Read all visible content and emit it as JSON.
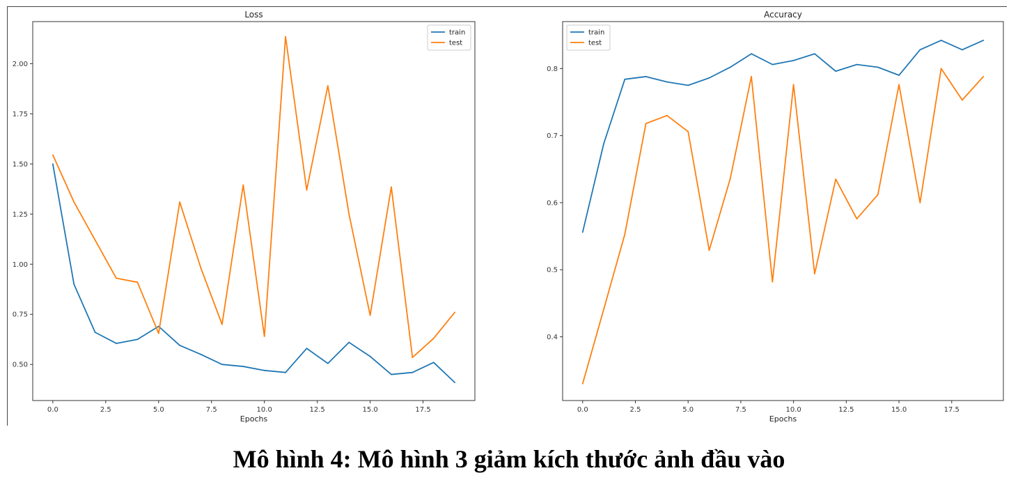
{
  "caption": "Mô hình 4: Mô hình 3 giảm kích thước ảnh đầu vào",
  "colors": {
    "train": "#1f77b4",
    "test": "#ff7f0e"
  },
  "chart_data": [
    {
      "type": "line",
      "title": "Loss",
      "xlabel": "Epochs",
      "ylabel": "",
      "x": [
        0,
        1,
        2,
        3,
        4,
        5,
        6,
        7,
        8,
        9,
        10,
        11,
        12,
        13,
        14,
        15,
        16,
        17,
        18,
        19
      ],
      "xticks": [
        "0.0",
        "2.5",
        "5.0",
        "7.5",
        "10.0",
        "12.5",
        "15.0",
        "17.5"
      ],
      "xtick_values": [
        0,
        2.5,
        5,
        7.5,
        10,
        12.5,
        15,
        17.5
      ],
      "yticks": [
        "0.50",
        "0.75",
        "1.00",
        "1.25",
        "1.50",
        "1.75",
        "2.00"
      ],
      "ytick_values": [
        0.5,
        0.75,
        1.0,
        1.25,
        1.5,
        1.75,
        2.0
      ],
      "xlim": [
        -0.95,
        19.95
      ],
      "ylim": [
        0.32,
        2.21
      ],
      "grid": false,
      "legend": "top-right",
      "series": [
        {
          "name": "train",
          "values": [
            1.5,
            0.9,
            0.66,
            0.605,
            0.625,
            0.69,
            0.595,
            0.55,
            0.5,
            0.49,
            0.47,
            0.46,
            0.58,
            0.505,
            0.61,
            0.54,
            0.45,
            0.46,
            0.51,
            0.41
          ]
        },
        {
          "name": "test",
          "values": [
            1.545,
            1.31,
            1.12,
            0.93,
            0.91,
            0.655,
            1.31,
            0.98,
            0.7,
            1.395,
            0.64,
            2.135,
            1.37,
            1.89,
            1.25,
            0.745,
            1.385,
            0.535,
            0.63,
            0.76
          ]
        }
      ]
    },
    {
      "type": "line",
      "title": "Accuracy",
      "xlabel": "Epochs",
      "ylabel": "",
      "x": [
        0,
        1,
        2,
        3,
        4,
        5,
        6,
        7,
        8,
        9,
        10,
        11,
        12,
        13,
        14,
        15,
        16,
        17,
        18,
        19
      ],
      "xticks": [
        "0.0",
        "2.5",
        "5.0",
        "7.5",
        "10.0",
        "12.5",
        "15.0",
        "17.5"
      ],
      "xtick_values": [
        0,
        2.5,
        5,
        7.5,
        10,
        12.5,
        15,
        17.5
      ],
      "yticks": [
        "0.4",
        "0.5",
        "0.6",
        "0.7",
        "0.8"
      ],
      "ytick_values": [
        0.4,
        0.5,
        0.6,
        0.7,
        0.8
      ],
      "xlim": [
        -0.95,
        19.95
      ],
      "ylim": [
        0.305,
        0.87
      ],
      "grid": false,
      "legend": "top-left",
      "series": [
        {
          "name": "train",
          "values": [
            0.556,
            0.688,
            0.784,
            0.788,
            0.78,
            0.775,
            0.786,
            0.802,
            0.822,
            0.806,
            0.812,
            0.822,
            0.796,
            0.806,
            0.802,
            0.79,
            0.828,
            0.842,
            0.828,
            0.842
          ]
        },
        {
          "name": "test",
          "values": [
            0.33,
            0.441,
            0.553,
            0.718,
            0.73,
            0.706,
            0.529,
            0.636,
            0.788,
            0.482,
            0.776,
            0.494,
            0.635,
            0.576,
            0.612,
            0.776,
            0.6,
            0.8,
            0.753,
            0.788
          ]
        }
      ]
    }
  ]
}
